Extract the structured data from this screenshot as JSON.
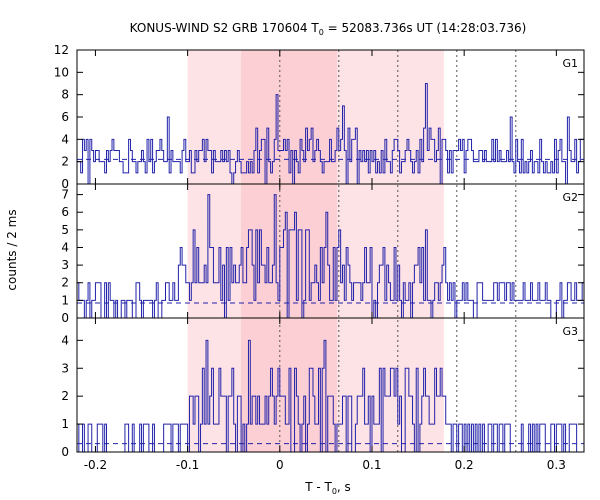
{
  "chart_data": {
    "type": "line",
    "title": {
      "prefix": "KONUS-WIND S2 GRB 170604 T",
      "sub": "0",
      "suffix": " = 52083.736s UT (14:28:03.736)"
    },
    "xlabel": {
      "prefix": "T - T",
      "sub": "0",
      "suffix": ", s"
    },
    "ylabel": "counts / 2 ms",
    "xlim": [
      -0.22,
      0.33
    ],
    "x_ticks": [
      -0.2,
      -0.1,
      0,
      0.1,
      0.2,
      0.3
    ],
    "x_tick_labels": [
      "-0.2",
      "-0.1",
      "0",
      "0.1",
      "0.2",
      "0.3"
    ],
    "bin_width": 0.002,
    "shaded_regions": [
      {
        "from": -0.1,
        "to": 0.178,
        "color": "#fde3e5"
      },
      {
        "from": -0.042,
        "to": 0.062,
        "color": "#fbcfd3"
      }
    ],
    "vertical_lines": [
      0.0,
      0.064,
      0.128,
      0.192,
      0.256
    ],
    "colors": {
      "series": "#2222aa",
      "frame": "#000000",
      "dotted": "#555555"
    },
    "panels": [
      {
        "name": "G1",
        "ylim": [
          0,
          12
        ],
        "yticks": [
          0,
          2,
          4,
          6,
          8,
          10,
          12
        ],
        "background_level": 2.2,
        "segments": [
          {
            "from": -0.22,
            "to": -0.04,
            "base": 2.4,
            "amp": 1.7
          },
          {
            "from": -0.04,
            "to": 0.18,
            "base": 2.6,
            "amp": 2.3
          },
          {
            "from": 0.18,
            "to": 0.33,
            "base": 2.4,
            "amp": 1.7
          }
        ],
        "peaks": [
          {
            "t": -0.122,
            "v": 6
          },
          {
            "t": -0.004,
            "v": 8
          },
          {
            "t": 0.068,
            "v": 7
          },
          {
            "t": 0.157,
            "v": 9
          },
          {
            "t": 0.25,
            "v": 6
          },
          {
            "t": 0.311,
            "v": 6
          }
        ]
      },
      {
        "name": "G2",
        "ylim": [
          0,
          7.6
        ],
        "yticks": [
          0,
          1,
          2,
          3,
          4,
          5,
          6,
          7
        ],
        "background_level": 0.85,
        "segments": [
          {
            "from": -0.22,
            "to": -0.11,
            "base": 0.95,
            "amp": 0.9
          },
          {
            "from": -0.11,
            "to": -0.04,
            "base": 2.6,
            "amp": 2.2
          },
          {
            "from": -0.04,
            "to": 0.07,
            "base": 3.2,
            "amp": 2.6
          },
          {
            "from": 0.07,
            "to": 0.18,
            "base": 2.3,
            "amp": 1.8
          },
          {
            "from": 0.18,
            "to": 0.33,
            "base": 1.1,
            "amp": 0.9
          }
        ],
        "peaks": [
          {
            "t": -0.078,
            "v": 7
          },
          {
            "t": -0.006,
            "v": 7
          },
          {
            "t": 0.017,
            "v": 6
          },
          {
            "t": 0.05,
            "v": 6
          },
          {
            "t": 0.158,
            "v": 5
          }
        ]
      },
      {
        "name": "G3",
        "ylim": [
          0,
          4.8
        ],
        "yticks": [
          0,
          1,
          2,
          3,
          4
        ],
        "background_level": 0.3,
        "segments": [
          {
            "from": -0.22,
            "to": -0.1,
            "base": 0.45,
            "amp": 0.7
          },
          {
            "from": -0.1,
            "to": 0.18,
            "base": 1.5,
            "amp": 1.5
          },
          {
            "from": 0.18,
            "to": 0.33,
            "base": 0.5,
            "amp": 0.7
          }
        ],
        "peaks": [
          {
            "t": -0.08,
            "v": 4
          },
          {
            "t": -0.035,
            "v": 4
          },
          {
            "t": 0.047,
            "v": 4
          },
          {
            "t": 0.12,
            "v": 3
          }
        ]
      }
    ]
  }
}
